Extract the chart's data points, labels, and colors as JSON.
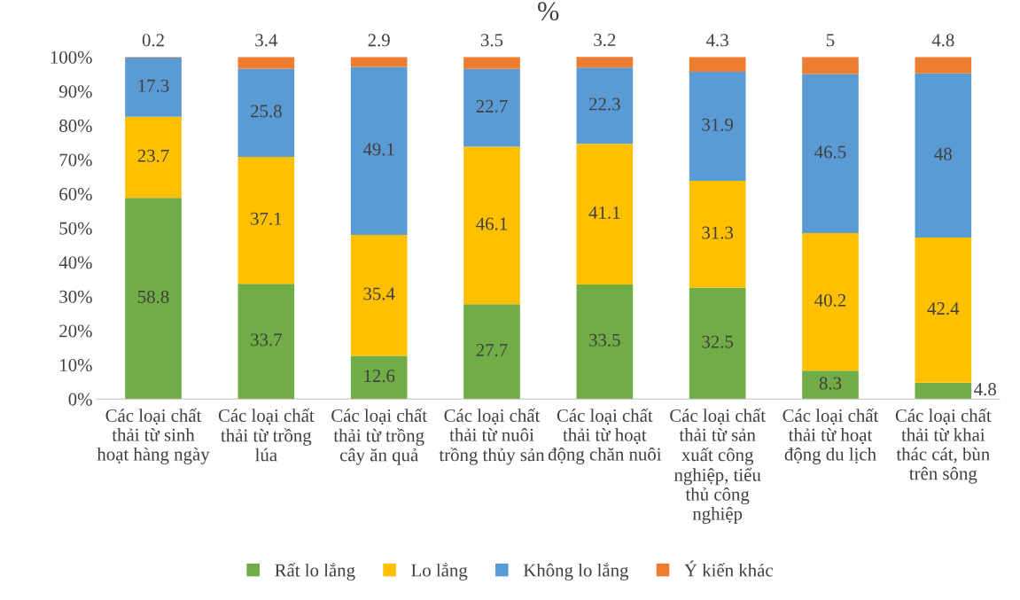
{
  "chart_data": {
    "type": "bar",
    "title": "%",
    "stacked": true,
    "data_labels": true,
    "legend": "bottom",
    "grid": false,
    "categories": [
      "Các loại chất thải từ sinh hoạt hàng ngày",
      "Các loại chất thải từ trồng lúa",
      "Các loại chất thải từ trồng cây ăn quả",
      "Các loại chất thải từ nuôi trồng thủy sản",
      "Các loại chất thải từ hoạt động chăn nuôi",
      "Các loại chất thải từ sản xuất công nghiệp, tiểu thủ công nghiệp",
      "Các loại chất thải từ hoạt động du lịch",
      "Các loại chất thải từ khai thác cát, bùn trên sông"
    ],
    "ylim": [
      0,
      100
    ],
    "yticks": [
      {
        "value": 0,
        "label": "0%"
      },
      {
        "value": 10,
        "label": "10%"
      },
      {
        "value": 20,
        "label": "20%"
      },
      {
        "value": 30,
        "label": "30%"
      },
      {
        "value": 40,
        "label": "40%"
      },
      {
        "value": 50,
        "label": "50%"
      },
      {
        "value": 60,
        "label": "60%"
      },
      {
        "value": 70,
        "label": "70%"
      },
      {
        "value": 80,
        "label": "80%"
      },
      {
        "value": 90,
        "label": "90%"
      },
      {
        "value": 100,
        "label": "100%"
      }
    ],
    "series": [
      {
        "name": "Rất lo lắng",
        "color": "#70ad47",
        "values": [
          58.8,
          33.7,
          12.6,
          27.7,
          33.5,
          32.5,
          8.3,
          4.8
        ]
      },
      {
        "name": "Lo lắng",
        "color": "#ffc000",
        "values": [
          23.7,
          37.1,
          35.4,
          46.1,
          41.1,
          31.3,
          40.2,
          42.4
        ]
      },
      {
        "name": "Không lo lắng",
        "color": "#5b9bd5",
        "values": [
          17.3,
          25.8,
          49.1,
          22.7,
          22.3,
          31.9,
          46.5,
          48
        ]
      },
      {
        "name": "Ý kiến khác",
        "color": "#ed7d31",
        "values": [
          0.2,
          3.4,
          2.9,
          3.5,
          3.2,
          4.3,
          5,
          4.8
        ]
      }
    ]
  }
}
